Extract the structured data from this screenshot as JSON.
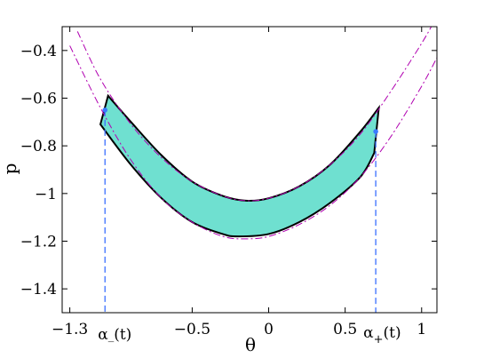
{
  "chart_data": {
    "type": "area",
    "xlabel": "θ",
    "ylabel": "p",
    "xlim": [
      -1.35,
      1.1
    ],
    "ylim": [
      -1.5,
      -0.3
    ],
    "x_ticks": [
      {
        "value": -1.3,
        "label": "−1.3"
      },
      {
        "value": -0.5,
        "label": "−0.5"
      },
      {
        "value": 0,
        "label": "0"
      },
      {
        "value": 0.5,
        "label": "0.5"
      },
      {
        "value": 1,
        "label": "1"
      }
    ],
    "y_ticks": [
      {
        "value": -0.4,
        "label": "−0.4"
      },
      {
        "value": -0.6,
        "label": "−0.6"
      },
      {
        "value": -0.8,
        "label": "−0.8"
      },
      {
        "value": -1.0,
        "label": "−1"
      },
      {
        "value": -1.2,
        "label": "−1.2"
      },
      {
        "value": -1.4,
        "label": "−1.4"
      }
    ],
    "region": {
      "fill": "#6fe0d0",
      "upper_boundary": [
        [
          -1.05,
          -0.59
        ],
        [
          -0.9,
          -0.7
        ],
        [
          -0.7,
          -0.84
        ],
        [
          -0.5,
          -0.95
        ],
        [
          -0.3,
          -1.01
        ],
        [
          -0.15,
          -1.03
        ],
        [
          0.0,
          -1.02
        ],
        [
          0.2,
          -0.97
        ],
        [
          0.4,
          -0.88
        ],
        [
          0.6,
          -0.74
        ],
        [
          0.72,
          -0.64
        ]
      ],
      "lower_boundary": [
        [
          -1.1,
          -0.71
        ],
        [
          -0.9,
          -0.88
        ],
        [
          -0.7,
          -1.02
        ],
        [
          -0.5,
          -1.12
        ],
        [
          -0.3,
          -1.17
        ],
        [
          -0.2,
          -1.18
        ],
        [
          0.0,
          -1.17
        ],
        [
          0.2,
          -1.12
        ],
        [
          0.4,
          -1.04
        ],
        [
          0.6,
          -0.93
        ],
        [
          0.69,
          -0.83
        ]
      ]
    },
    "dashdot_curves": {
      "color": "#b000b0",
      "upper": [
        [
          -1.25,
          -0.32
        ],
        [
          -1.1,
          -0.52
        ],
        [
          -0.9,
          -0.71
        ],
        [
          -0.7,
          -0.85
        ],
        [
          -0.5,
          -0.95
        ],
        [
          -0.3,
          -1.01
        ],
        [
          -0.15,
          -1.03
        ],
        [
          0.0,
          -1.02
        ],
        [
          0.2,
          -0.97
        ],
        [
          0.4,
          -0.88
        ],
        [
          0.6,
          -0.75
        ],
        [
          0.8,
          -0.57
        ],
        [
          1.0,
          -0.37
        ],
        [
          1.08,
          -0.28
        ]
      ],
      "lower": [
        [
          -1.3,
          -0.38
        ],
        [
          -1.1,
          -0.64
        ],
        [
          -0.9,
          -0.86
        ],
        [
          -0.7,
          -1.02
        ],
        [
          -0.5,
          -1.12
        ],
        [
          -0.3,
          -1.18
        ],
        [
          -0.15,
          -1.19
        ],
        [
          0.0,
          -1.18
        ],
        [
          0.2,
          -1.13
        ],
        [
          0.4,
          -1.05
        ],
        [
          0.6,
          -0.93
        ],
        [
          0.8,
          -0.76
        ],
        [
          1.0,
          -0.55
        ],
        [
          1.1,
          -0.43
        ]
      ]
    },
    "markers": {
      "color": "#3a7bff",
      "points": [
        [
          -1.07,
          -0.65
        ],
        [
          0.7,
          -0.74
        ]
      ]
    },
    "vlines": [
      {
        "x": -1.07,
        "label": "α_(t)"
      },
      {
        "x": 0.7,
        "label": "α+(t)"
      }
    ],
    "vline_color": "#3a6fff",
    "alpha_minus": {
      "base": "α",
      "sub": "_",
      "arg": "(t)"
    },
    "alpha_plus": {
      "base": "α",
      "sub": "+",
      "arg": "(t)"
    },
    "grid": false
  }
}
